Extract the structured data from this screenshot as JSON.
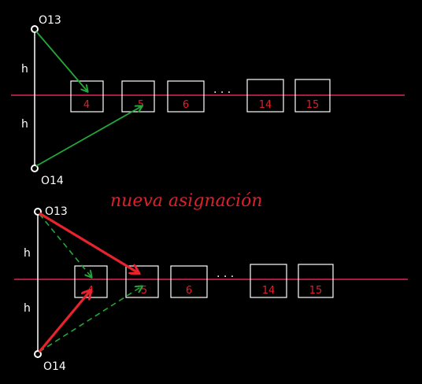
{
  "diagram": {
    "top": {
      "node_top": "O13",
      "node_bottom": "O14",
      "segment_label_upper": "h",
      "segment_label_lower": "h",
      "boxes": [
        "4",
        "5",
        "6",
        "14",
        "15"
      ],
      "ellipsis": ". . ."
    },
    "heading": "nueva asignación",
    "bottom": {
      "node_top": "O13",
      "node_bottom": "O14",
      "segment_label_upper": "h",
      "segment_label_lower": "h",
      "boxes": [
        "4",
        "5",
        "6",
        "14",
        "15"
      ],
      "ellipsis": ". . ."
    },
    "colors": {
      "background": "#000000",
      "axis_line": "#e0265a",
      "box_stroke": "#ffffff",
      "box_label": "#e01f2b",
      "old_arrow": "#22a83a",
      "new_arrow": "#e8232e",
      "heading": "#e01f2b"
    }
  }
}
